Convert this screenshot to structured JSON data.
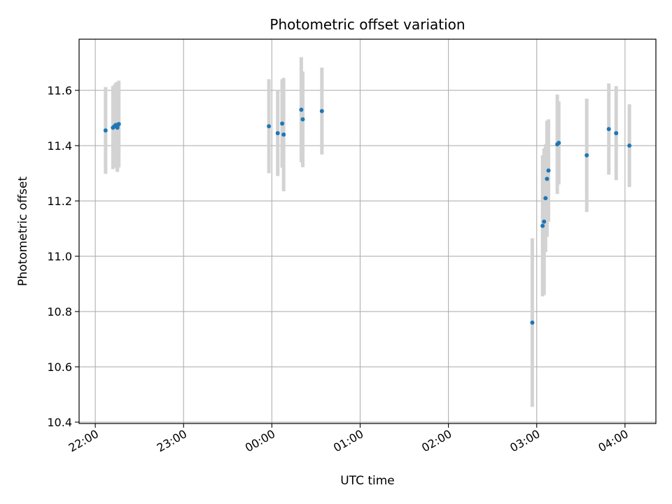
{
  "chart_data": {
    "type": "scatter",
    "title": "Photometric offset variation",
    "xlabel": "UTC time",
    "ylabel": "Photometric offset",
    "x_axis_kind": "time",
    "xlim": [
      "21:49",
      "04:21"
    ],
    "ylim": [
      10.395,
      11.785
    ],
    "x_ticks": [
      "22:00",
      "23:00",
      "00:00",
      "01:00",
      "02:00",
      "03:00",
      "04:00"
    ],
    "y_ticks": [
      10.4,
      10.6,
      10.8,
      11.0,
      11.2,
      11.4,
      11.6
    ],
    "y_tick_labels": [
      "10.4",
      "10.6",
      "10.8",
      "11.0",
      "11.2",
      "11.4",
      "11.6"
    ],
    "grid": true,
    "point_color": "#1f77b4",
    "errorbar_color": "#d3d3d3",
    "points": [
      {
        "x": "22:07",
        "y": 11.455,
        "err": 0.157
      },
      {
        "x": "22:12",
        "y": 11.465,
        "err": 0.15
      },
      {
        "x": "22:13",
        "y": 11.47,
        "err": 0.15
      },
      {
        "x": "22:14",
        "y": 11.475,
        "err": 0.153
      },
      {
        "x": "22:15",
        "y": 11.465,
        "err": 0.16
      },
      {
        "x": "22:15",
        "y": 11.47,
        "err": 0.16
      },
      {
        "x": "22:16",
        "y": 11.478,
        "err": 0.157
      },
      {
        "x": "23:58",
        "y": 11.47,
        "err": 0.17
      },
      {
        "x": "00:04",
        "y": 11.445,
        "err": 0.155
      },
      {
        "x": "00:07",
        "y": 11.48,
        "err": 0.16
      },
      {
        "x": "00:08",
        "y": 11.44,
        "err": 0.205
      },
      {
        "x": "00:20",
        "y": 11.53,
        "err": 0.19
      },
      {
        "x": "00:21",
        "y": 11.495,
        "err": 0.173
      },
      {
        "x": "00:34",
        "y": 11.525,
        "err": 0.157
      },
      {
        "x": "02:57",
        "y": 10.76,
        "err": 0.305
      },
      {
        "x": "03:04",
        "y": 11.11,
        "err": 0.255
      },
      {
        "x": "03:05",
        "y": 11.125,
        "err": 0.265
      },
      {
        "x": "03:06",
        "y": 11.21,
        "err": 0.195
      },
      {
        "x": "03:07",
        "y": 11.28,
        "err": 0.21
      },
      {
        "x": "03:08",
        "y": 11.31,
        "err": 0.185
      },
      {
        "x": "03:14",
        "y": 11.405,
        "err": 0.18
      },
      {
        "x": "03:15",
        "y": 11.41,
        "err": 0.15
      },
      {
        "x": "03:34",
        "y": 11.365,
        "err": 0.205
      },
      {
        "x": "03:49",
        "y": 11.46,
        "err": 0.165
      },
      {
        "x": "03:54",
        "y": 11.445,
        "err": 0.17
      },
      {
        "x": "04:03",
        "y": 11.4,
        "err": 0.15
      }
    ]
  }
}
